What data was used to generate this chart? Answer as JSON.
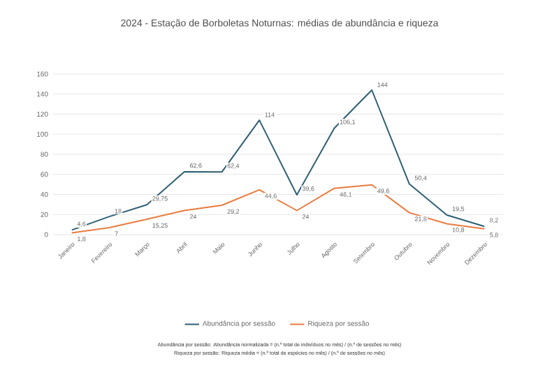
{
  "chart_data": {
    "type": "line",
    "title": "2024 - Estação de Borboletas Noturnas: médias de abundância e riqueza",
    "categories": [
      "Janeiro",
      "Fevereiro",
      "Março",
      "Abril",
      "Maio",
      "Junho",
      "Julho",
      "Agosto",
      "Setembro",
      "Outubro",
      "Novembro",
      "Dezembro"
    ],
    "series": [
      {
        "name": "Abundância por sessão",
        "color": "#2e5f73",
        "values": [
          4.6,
          18,
          29.75,
          62.6,
          62.4,
          114,
          39.6,
          106.1,
          144,
          50.4,
          19.5,
          8.2
        ],
        "value_labels": [
          "4,6",
          "18",
          "29,75",
          "62,6",
          "62,4",
          "114",
          "39,6",
          "106,1",
          "144",
          "50,4",
          "19,5",
          "8,2"
        ]
      },
      {
        "name": "Riqueza por sessão",
        "color": "#e97b3e",
        "values": [
          1.8,
          7,
          15.25,
          24,
          29.2,
          44.6,
          24,
          46.1,
          49.6,
          21.8,
          10.8,
          5.8
        ],
        "value_labels": [
          "1,8",
          "7",
          "15,25",
          "24",
          "29,2",
          "44,6",
          "24",
          "46,1",
          "49,6",
          "21,8",
          "10,8",
          "5,8"
        ]
      }
    ],
    "ylim": [
      0,
      160
    ],
    "yticks": [
      0,
      20,
      40,
      60,
      80,
      100,
      120,
      140,
      160
    ],
    "grid": "y",
    "legend": "bottom",
    "annotations": [
      "Abundância por sessão: Abundância normalizada = (n.º total de indivíduos no mês) / (n.º de sessões no mês)",
      "Riqueza por sessão: Riqueza média = (n.º total de espécies no mês) / (n.º de sessões no mês)"
    ]
  }
}
